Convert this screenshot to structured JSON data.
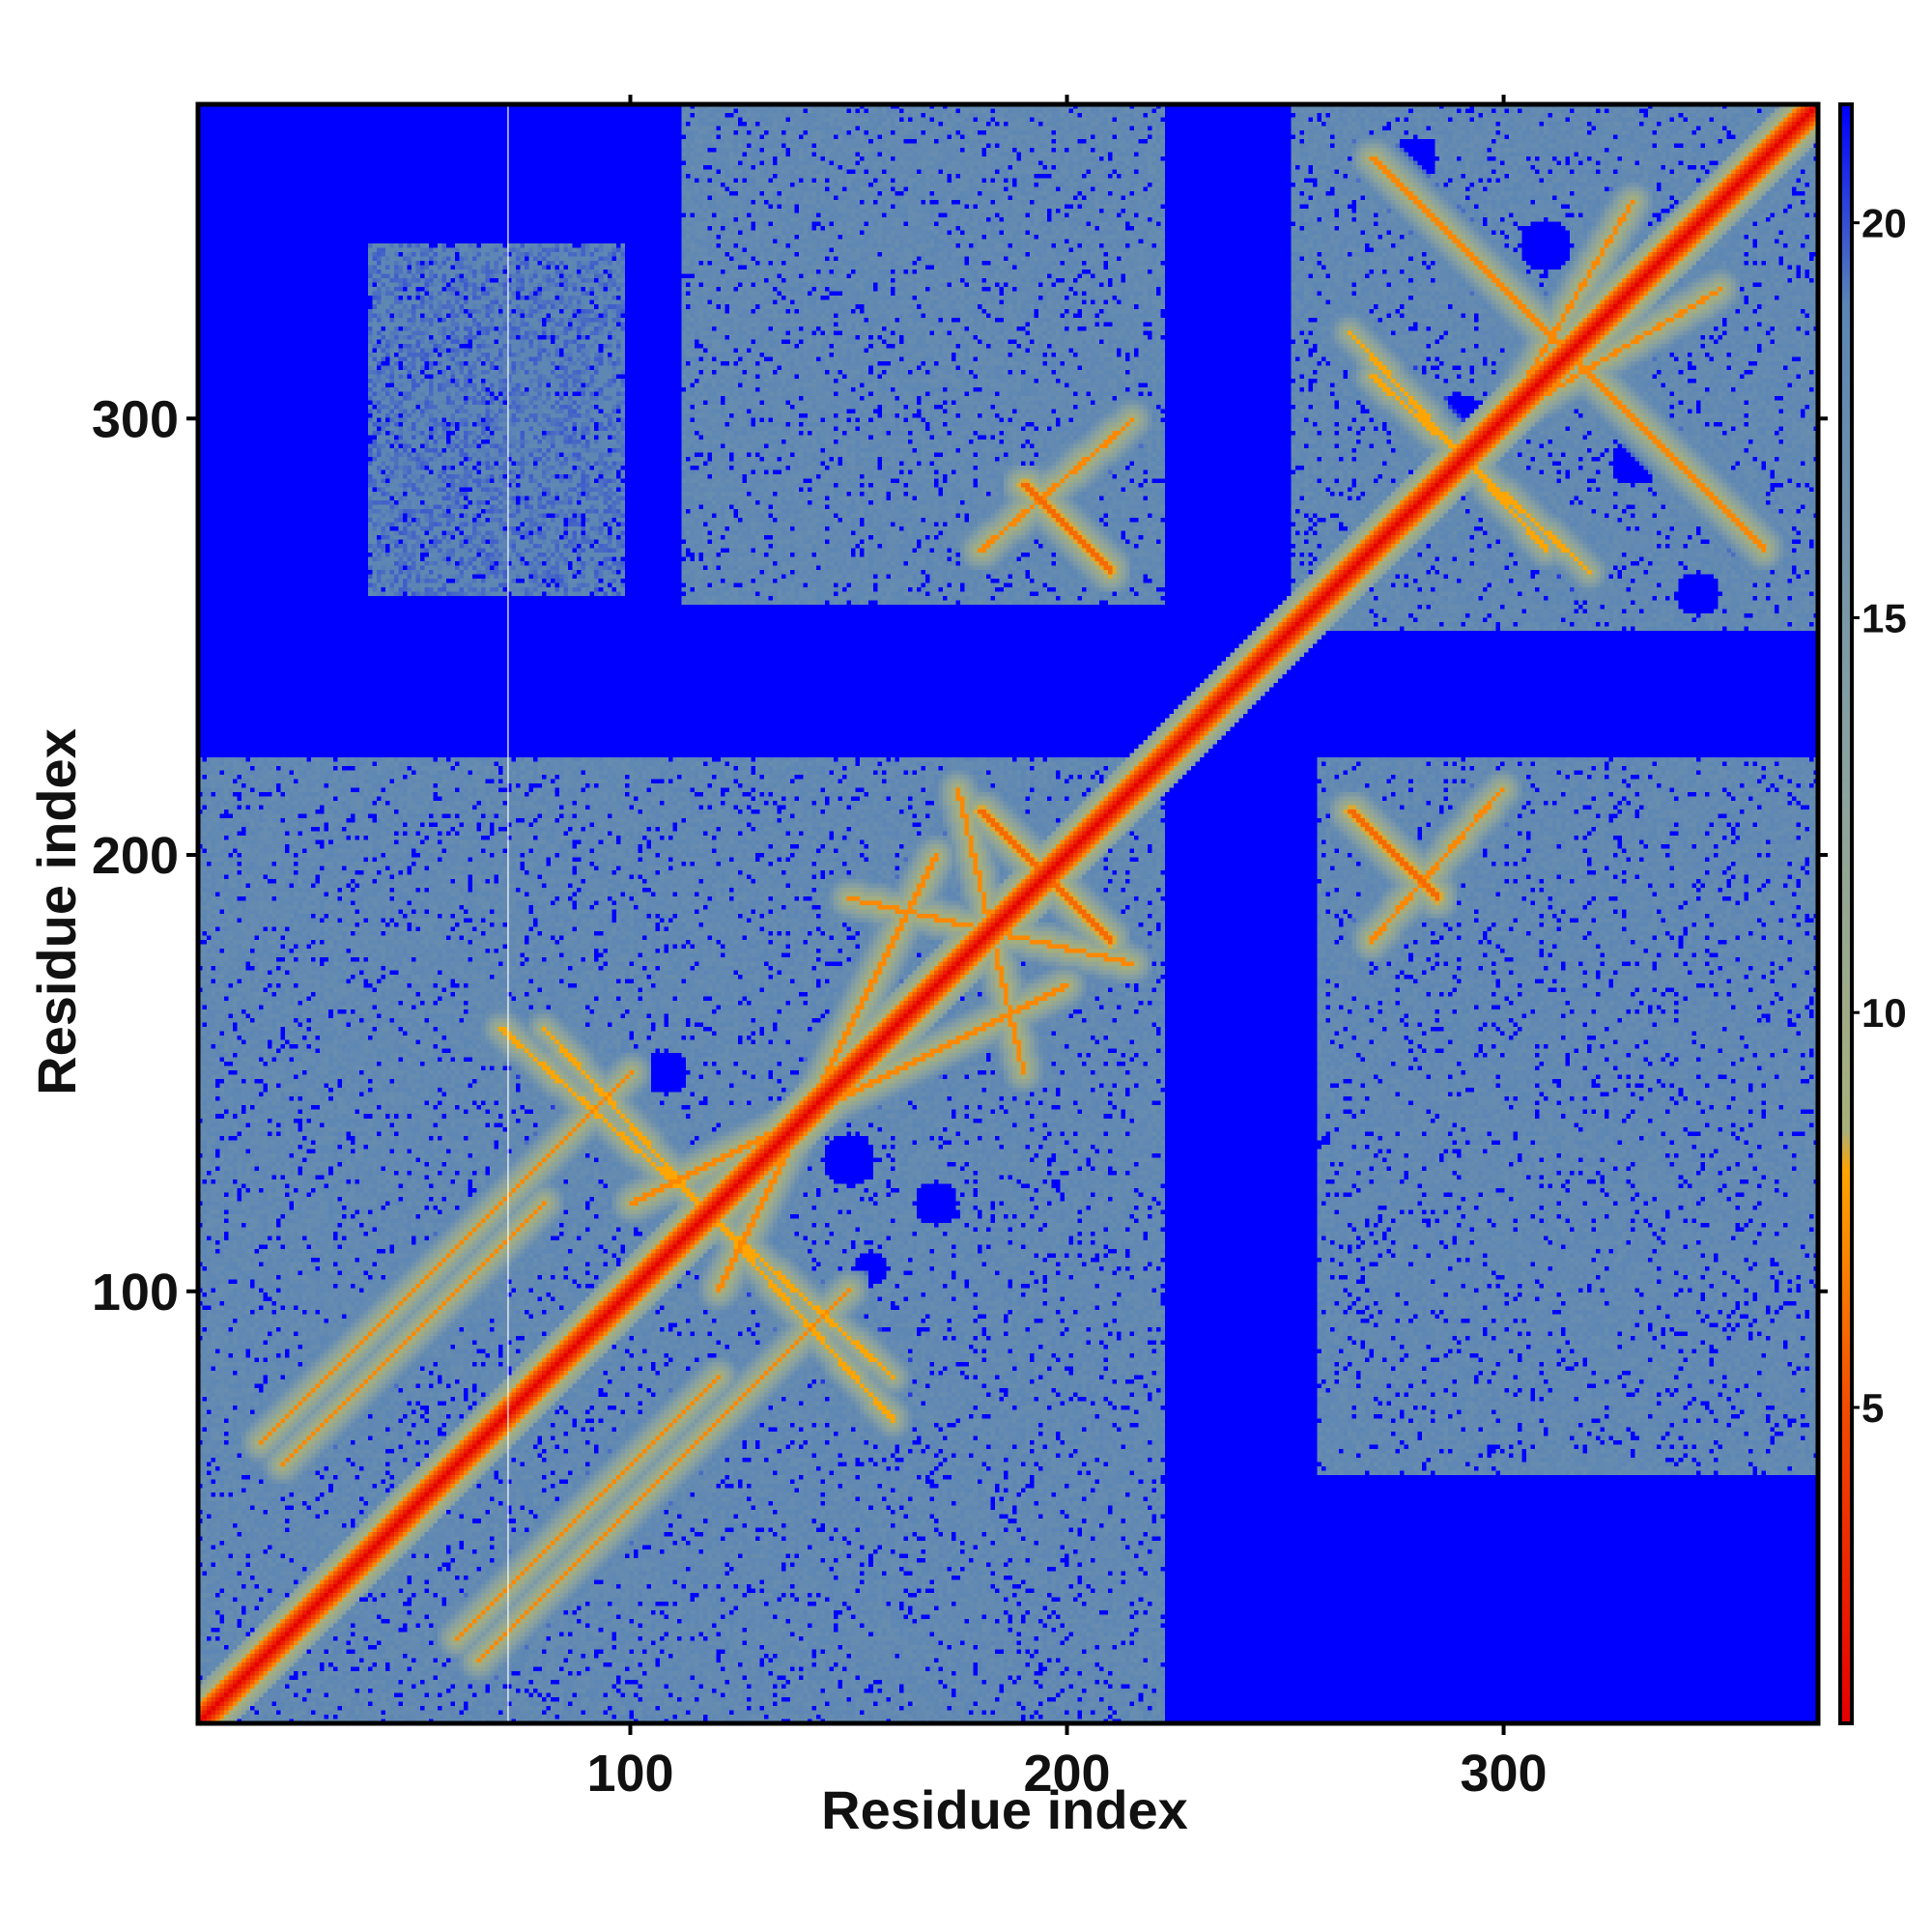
{
  "chart_data": {
    "type": "heatmap",
    "title": "",
    "xlabel": "Residue index",
    "ylabel": "Residue index",
    "xlim": [
      1,
      372
    ],
    "ylim": [
      1,
      372
    ],
    "x_ticks": [
      100,
      200,
      300
    ],
    "y_ticks": [
      100,
      200,
      300
    ],
    "colorbar": {
      "ticks": [
        5,
        10,
        15,
        20
      ],
      "range": [
        1,
        21.5
      ],
      "stops": [
        {
          "value": 1,
          "color": "#e60000"
        },
        {
          "value": 5,
          "color": "#f24d00"
        },
        {
          "value": 8,
          "color": "#ffa500"
        },
        {
          "value": 8.5,
          "color": "#a8b07a"
        },
        {
          "value": 13,
          "color": "#8aa2a0"
        },
        {
          "value": 19,
          "color": "#5b85b5"
        },
        {
          "value": 21.5,
          "color": "#0000ff"
        }
      ]
    },
    "diagonal_band": {
      "center_value": 1,
      "half_width_residues": 4
    },
    "blocks": [
      {
        "x": [
          1,
          222
        ],
        "y": [
          1,
          222
        ],
        "value": 18
      },
      {
        "x": [
          252,
          372
        ],
        "y": [
          252,
          372
        ],
        "value": 18
      },
      {
        "x": [
          112,
          222
        ],
        "y": [
          258,
          372
        ],
        "value": 18
      },
      {
        "x": [
          258,
          372
        ],
        "y": [
          112,
          222
        ],
        "value": 18
      },
      {
        "x": [
          258,
          372
        ],
        "y": [
          58,
          112
        ],
        "value": 18
      },
      {
        "x": [
          40,
          98
        ],
        "y": [
          260,
          340
        ],
        "value": 19
      }
    ],
    "contact_lines": [
      {
        "from": [
          15,
          65
        ],
        "to": [
          100,
          150
        ],
        "value": 7
      },
      {
        "from": [
          60,
          20
        ],
        "to": [
          120,
          80
        ],
        "value": 7
      },
      {
        "from": [
          70,
          160
        ],
        "to": [
          160,
          80
        ],
        "value": 8
      },
      {
        "from": [
          100,
          120
        ],
        "to": [
          200,
          170
        ],
        "value": 7
      },
      {
        "from": [
          150,
          190
        ],
        "to": [
          215,
          175
        ],
        "value": 7
      },
      {
        "from": [
          180,
          210
        ],
        "to": [
          210,
          180
        ],
        "value": 6
      },
      {
        "from": [
          270,
          360
        ],
        "to": [
          360,
          270
        ],
        "value": 7
      },
      {
        "from": [
          265,
          320
        ],
        "to": [
          310,
          270
        ],
        "value": 8
      },
      {
        "from": [
          300,
          300
        ],
        "to": [
          330,
          350
        ],
        "value": 7
      },
      {
        "from": [
          180,
          270
        ],
        "to": [
          215,
          300
        ],
        "value": 7
      },
      {
        "from": [
          265,
          210
        ],
        "to": [
          285,
          190
        ],
        "value": 6
      }
    ],
    "holes": [
      {
        "x": 150,
        "y": 130,
        "r": 6
      },
      {
        "x": 108,
        "y": 150,
        "r": 5
      },
      {
        "x": 130,
        "y": 105,
        "r": 5
      },
      {
        "x": 155,
        "y": 105,
        "r": 4
      },
      {
        "x": 170,
        "y": 120,
        "r": 5
      },
      {
        "x": 310,
        "y": 340,
        "r": 6
      },
      {
        "x": 290,
        "y": 300,
        "r": 6
      },
      {
        "x": 330,
        "y": 290,
        "r": 5
      },
      {
        "x": 345,
        "y": 260,
        "r": 5
      },
      {
        "x": 280,
        "y": 360,
        "r": 5
      }
    ],
    "grid": false,
    "legend": "colorbar-right"
  }
}
